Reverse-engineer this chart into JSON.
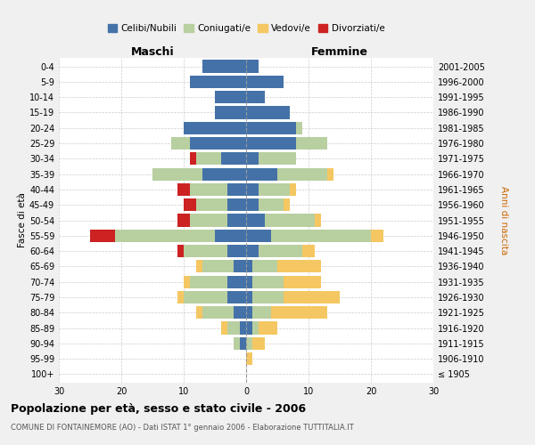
{
  "age_groups": [
    "100+",
    "95-99",
    "90-94",
    "85-89",
    "80-84",
    "75-79",
    "70-74",
    "65-69",
    "60-64",
    "55-59",
    "50-54",
    "45-49",
    "40-44",
    "35-39",
    "30-34",
    "25-29",
    "20-24",
    "15-19",
    "10-14",
    "5-9",
    "0-4"
  ],
  "birth_years": [
    "≤ 1905",
    "1906-1910",
    "1911-1915",
    "1916-1920",
    "1921-1925",
    "1926-1930",
    "1931-1935",
    "1936-1940",
    "1941-1945",
    "1946-1950",
    "1951-1955",
    "1956-1960",
    "1961-1965",
    "1966-1970",
    "1971-1975",
    "1976-1980",
    "1981-1985",
    "1986-1990",
    "1991-1995",
    "1996-2000",
    "2001-2005"
  ],
  "maschi": {
    "celibi": [
      0,
      0,
      1,
      1,
      2,
      3,
      3,
      2,
      3,
      5,
      3,
      3,
      3,
      7,
      4,
      9,
      10,
      5,
      5,
      9,
      7
    ],
    "coniugati": [
      0,
      0,
      1,
      2,
      5,
      7,
      6,
      5,
      7,
      16,
      6,
      5,
      6,
      8,
      4,
      3,
      0,
      0,
      0,
      0,
      0
    ],
    "vedovi": [
      0,
      0,
      0,
      1,
      1,
      1,
      1,
      1,
      0,
      0,
      0,
      0,
      0,
      0,
      0,
      0,
      0,
      0,
      0,
      0,
      0
    ],
    "divorziati": [
      0,
      0,
      0,
      0,
      0,
      0,
      0,
      0,
      1,
      4,
      2,
      2,
      2,
      0,
      1,
      0,
      0,
      0,
      0,
      0,
      0
    ]
  },
  "femmine": {
    "nubili": [
      0,
      0,
      0,
      1,
      1,
      1,
      1,
      1,
      2,
      4,
      3,
      2,
      2,
      5,
      2,
      8,
      8,
      7,
      3,
      6,
      2
    ],
    "coniugate": [
      0,
      0,
      1,
      1,
      3,
      5,
      5,
      4,
      7,
      16,
      8,
      4,
      5,
      8,
      6,
      5,
      1,
      0,
      0,
      0,
      0
    ],
    "vedove": [
      0,
      1,
      2,
      3,
      9,
      9,
      6,
      7,
      2,
      2,
      1,
      1,
      1,
      1,
      0,
      0,
      0,
      0,
      0,
      0,
      0
    ],
    "divorziate": [
      0,
      0,
      0,
      0,
      0,
      0,
      0,
      0,
      0,
      0,
      0,
      0,
      0,
      0,
      0,
      0,
      0,
      0,
      0,
      0,
      0
    ]
  },
  "colors": {
    "celibi": "#4472a8",
    "coniugati": "#b8cfa0",
    "vedovi": "#f5c762",
    "divorziati": "#cc2222"
  },
  "xlim": 30,
  "title": "Popolazione per età, sesso e stato civile - 2006",
  "subtitle": "COMUNE DI FONTAINEMORE (AO) - Dati ISTAT 1° gennaio 2006 - Elaborazione TUTTITALIA.IT",
  "ylabel_left": "Fasce di età",
  "ylabel_right": "Anni di nascita",
  "label_maschi": "Maschi",
  "label_femmine": "Femmine",
  "legend_labels": [
    "Celibi/Nubili",
    "Coniugati/e",
    "Vedovi/e",
    "Divorziati/e"
  ],
  "bg_color": "#f0f0f0",
  "plot_bg": "#ffffff"
}
